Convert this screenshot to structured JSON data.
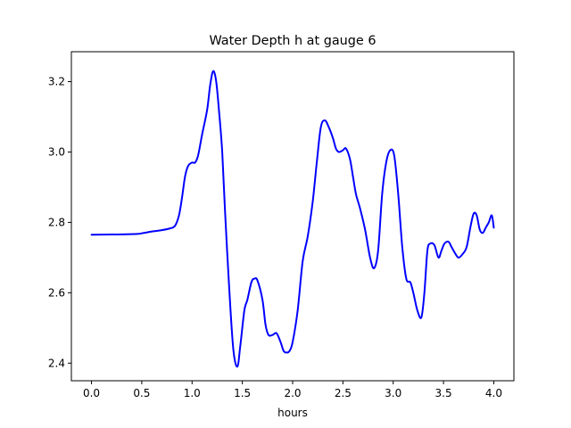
{
  "chart_data": {
    "type": "line",
    "title": "Water Depth h at gauge 6",
    "xlabel": "hours",
    "ylabel": "",
    "xlim": [
      -0.2,
      4.2
    ],
    "ylim": [
      2.35,
      3.285
    ],
    "xticks": [
      0.0,
      0.5,
      1.0,
      1.5,
      2.0,
      2.5,
      3.0,
      3.5,
      4.0
    ],
    "xtick_labels": [
      "0.0",
      "0.5",
      "1.0",
      "1.5",
      "2.0",
      "2.5",
      "3.0",
      "3.5",
      "4.0"
    ],
    "yticks": [
      2.4,
      2.6,
      2.8,
      3.0,
      3.2
    ],
    "ytick_labels": [
      "2.4",
      "2.6",
      "2.8",
      "3.0",
      "3.2"
    ],
    "grid": false,
    "series": [
      {
        "color": "#0000ff",
        "x": [
          0.0,
          0.3,
          0.45,
          0.52,
          0.6,
          0.7,
          0.78,
          0.83,
          0.87,
          0.9,
          0.93,
          0.96,
          1.0,
          1.03,
          1.06,
          1.1,
          1.15,
          1.18,
          1.21,
          1.24,
          1.27,
          1.3,
          1.33,
          1.37,
          1.41,
          1.45,
          1.48,
          1.52,
          1.55,
          1.59,
          1.62,
          1.65,
          1.7,
          1.73,
          1.76,
          1.8,
          1.84,
          1.88,
          1.91,
          1.94,
          1.97,
          2.0,
          2.05,
          2.1,
          2.15,
          2.2,
          2.24,
          2.28,
          2.32,
          2.36,
          2.4,
          2.43,
          2.46,
          2.5,
          2.53,
          2.57,
          2.6,
          2.63,
          2.67,
          2.72,
          2.77,
          2.81,
          2.85,
          2.89,
          2.93,
          2.97,
          3.01,
          3.05,
          3.09,
          3.13,
          3.17,
          3.2,
          3.24,
          3.28,
          3.31,
          3.34,
          3.37,
          3.41,
          3.45,
          3.48,
          3.51,
          3.55,
          3.58,
          3.62,
          3.65,
          3.69,
          3.73,
          3.77,
          3.8,
          3.83,
          3.86,
          3.89,
          3.92,
          3.95,
          3.98,
          4.0
        ],
        "y": [
          2.765,
          2.766,
          2.767,
          2.77,
          2.774,
          2.778,
          2.783,
          2.79,
          2.82,
          2.87,
          2.93,
          2.96,
          2.97,
          2.97,
          2.99,
          3.05,
          3.12,
          3.19,
          3.23,
          3.2,
          3.11,
          3.0,
          2.82,
          2.61,
          2.44,
          2.39,
          2.45,
          2.55,
          2.58,
          2.63,
          2.64,
          2.635,
          2.58,
          2.51,
          2.48,
          2.48,
          2.485,
          2.46,
          2.435,
          2.43,
          2.435,
          2.46,
          2.55,
          2.69,
          2.76,
          2.86,
          2.97,
          3.07,
          3.09,
          3.07,
          3.04,
          3.01,
          3.0,
          3.005,
          3.01,
          2.98,
          2.93,
          2.88,
          2.84,
          2.78,
          2.7,
          2.67,
          2.72,
          2.88,
          2.97,
          3.005,
          2.99,
          2.88,
          2.73,
          2.64,
          2.63,
          2.6,
          2.55,
          2.53,
          2.6,
          2.72,
          2.74,
          2.735,
          2.7,
          2.72,
          2.74,
          2.745,
          2.73,
          2.71,
          2.7,
          2.71,
          2.73,
          2.79,
          2.825,
          2.82,
          2.78,
          2.77,
          2.785,
          2.8,
          2.82,
          2.785
        ]
      }
    ]
  }
}
